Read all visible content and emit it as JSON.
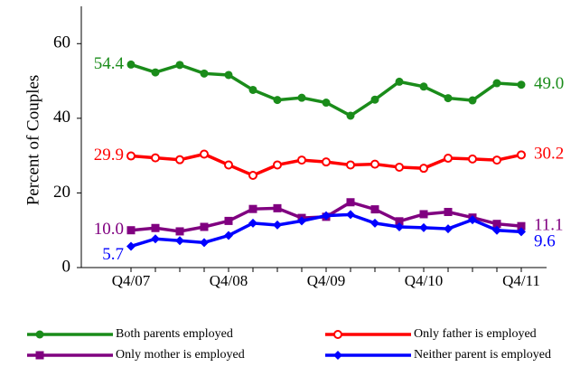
{
  "chart_data": {
    "type": "line",
    "y_label": "Percent of Couples",
    "categories": [
      "Q4/07",
      null,
      null,
      null,
      "Q4/08",
      null,
      null,
      null,
      "Q4/09",
      null,
      null,
      null,
      "Q4/10",
      null,
      null,
      null,
      "Q4/11"
    ],
    "ylim": [
      0,
      70
    ],
    "yticks": [
      0,
      20,
      40,
      60
    ],
    "grid": false,
    "series": [
      {
        "name": "Both parents employed",
        "color": "#1a8c1a",
        "marker": "circle",
        "values": [
          54.4,
          52.3,
          54.3,
          52.0,
          51.6,
          47.6,
          44.9,
          45.5,
          44.2,
          40.7,
          45.0,
          49.8,
          48.5,
          45.4,
          44.8,
          49.4,
          49.0
        ],
        "value_labels": [
          "54.4",
          null,
          null,
          null,
          null,
          null,
          null,
          null,
          null,
          null,
          null,
          null,
          null,
          null,
          null,
          null,
          "49.0"
        ]
      },
      {
        "name": "Only father is employed",
        "color": "#ff0000",
        "marker": "open-circle",
        "values": [
          29.9,
          29.4,
          28.9,
          30.4,
          27.5,
          24.7,
          27.5,
          28.8,
          28.3,
          27.5,
          27.7,
          26.9,
          26.6,
          29.3,
          29.1,
          28.8,
          30.2
        ],
        "value_labels": [
          "29.9",
          null,
          null,
          null,
          null,
          null,
          null,
          null,
          null,
          null,
          null,
          null,
          null,
          null,
          null,
          null,
          "30.2"
        ]
      },
      {
        "name": "Only mother is employed",
        "color": "#800080",
        "marker": "square",
        "values": [
          10.0,
          10.6,
          9.7,
          10.9,
          12.5,
          15.7,
          15.9,
          13.3,
          13.6,
          17.5,
          15.6,
          12.4,
          14.3,
          14.9,
          13.4,
          11.7,
          11.1
        ],
        "value_labels": [
          "10.0",
          null,
          null,
          null,
          null,
          null,
          null,
          null,
          null,
          null,
          null,
          null,
          null,
          null,
          null,
          null,
          "11.1"
        ]
      },
      {
        "name": "Neither parent is employed",
        "color": "#0000ff",
        "marker": "diamond",
        "values": [
          5.7,
          7.7,
          7.2,
          6.7,
          8.6,
          11.9,
          11.4,
          12.5,
          13.9,
          14.2,
          11.9,
          10.9,
          10.7,
          10.4,
          12.8,
          10.0,
          9.6
        ],
        "value_labels": [
          "5.7",
          null,
          null,
          null,
          null,
          null,
          null,
          null,
          null,
          null,
          null,
          null,
          null,
          null,
          null,
          null,
          "9.6"
        ]
      }
    ]
  }
}
